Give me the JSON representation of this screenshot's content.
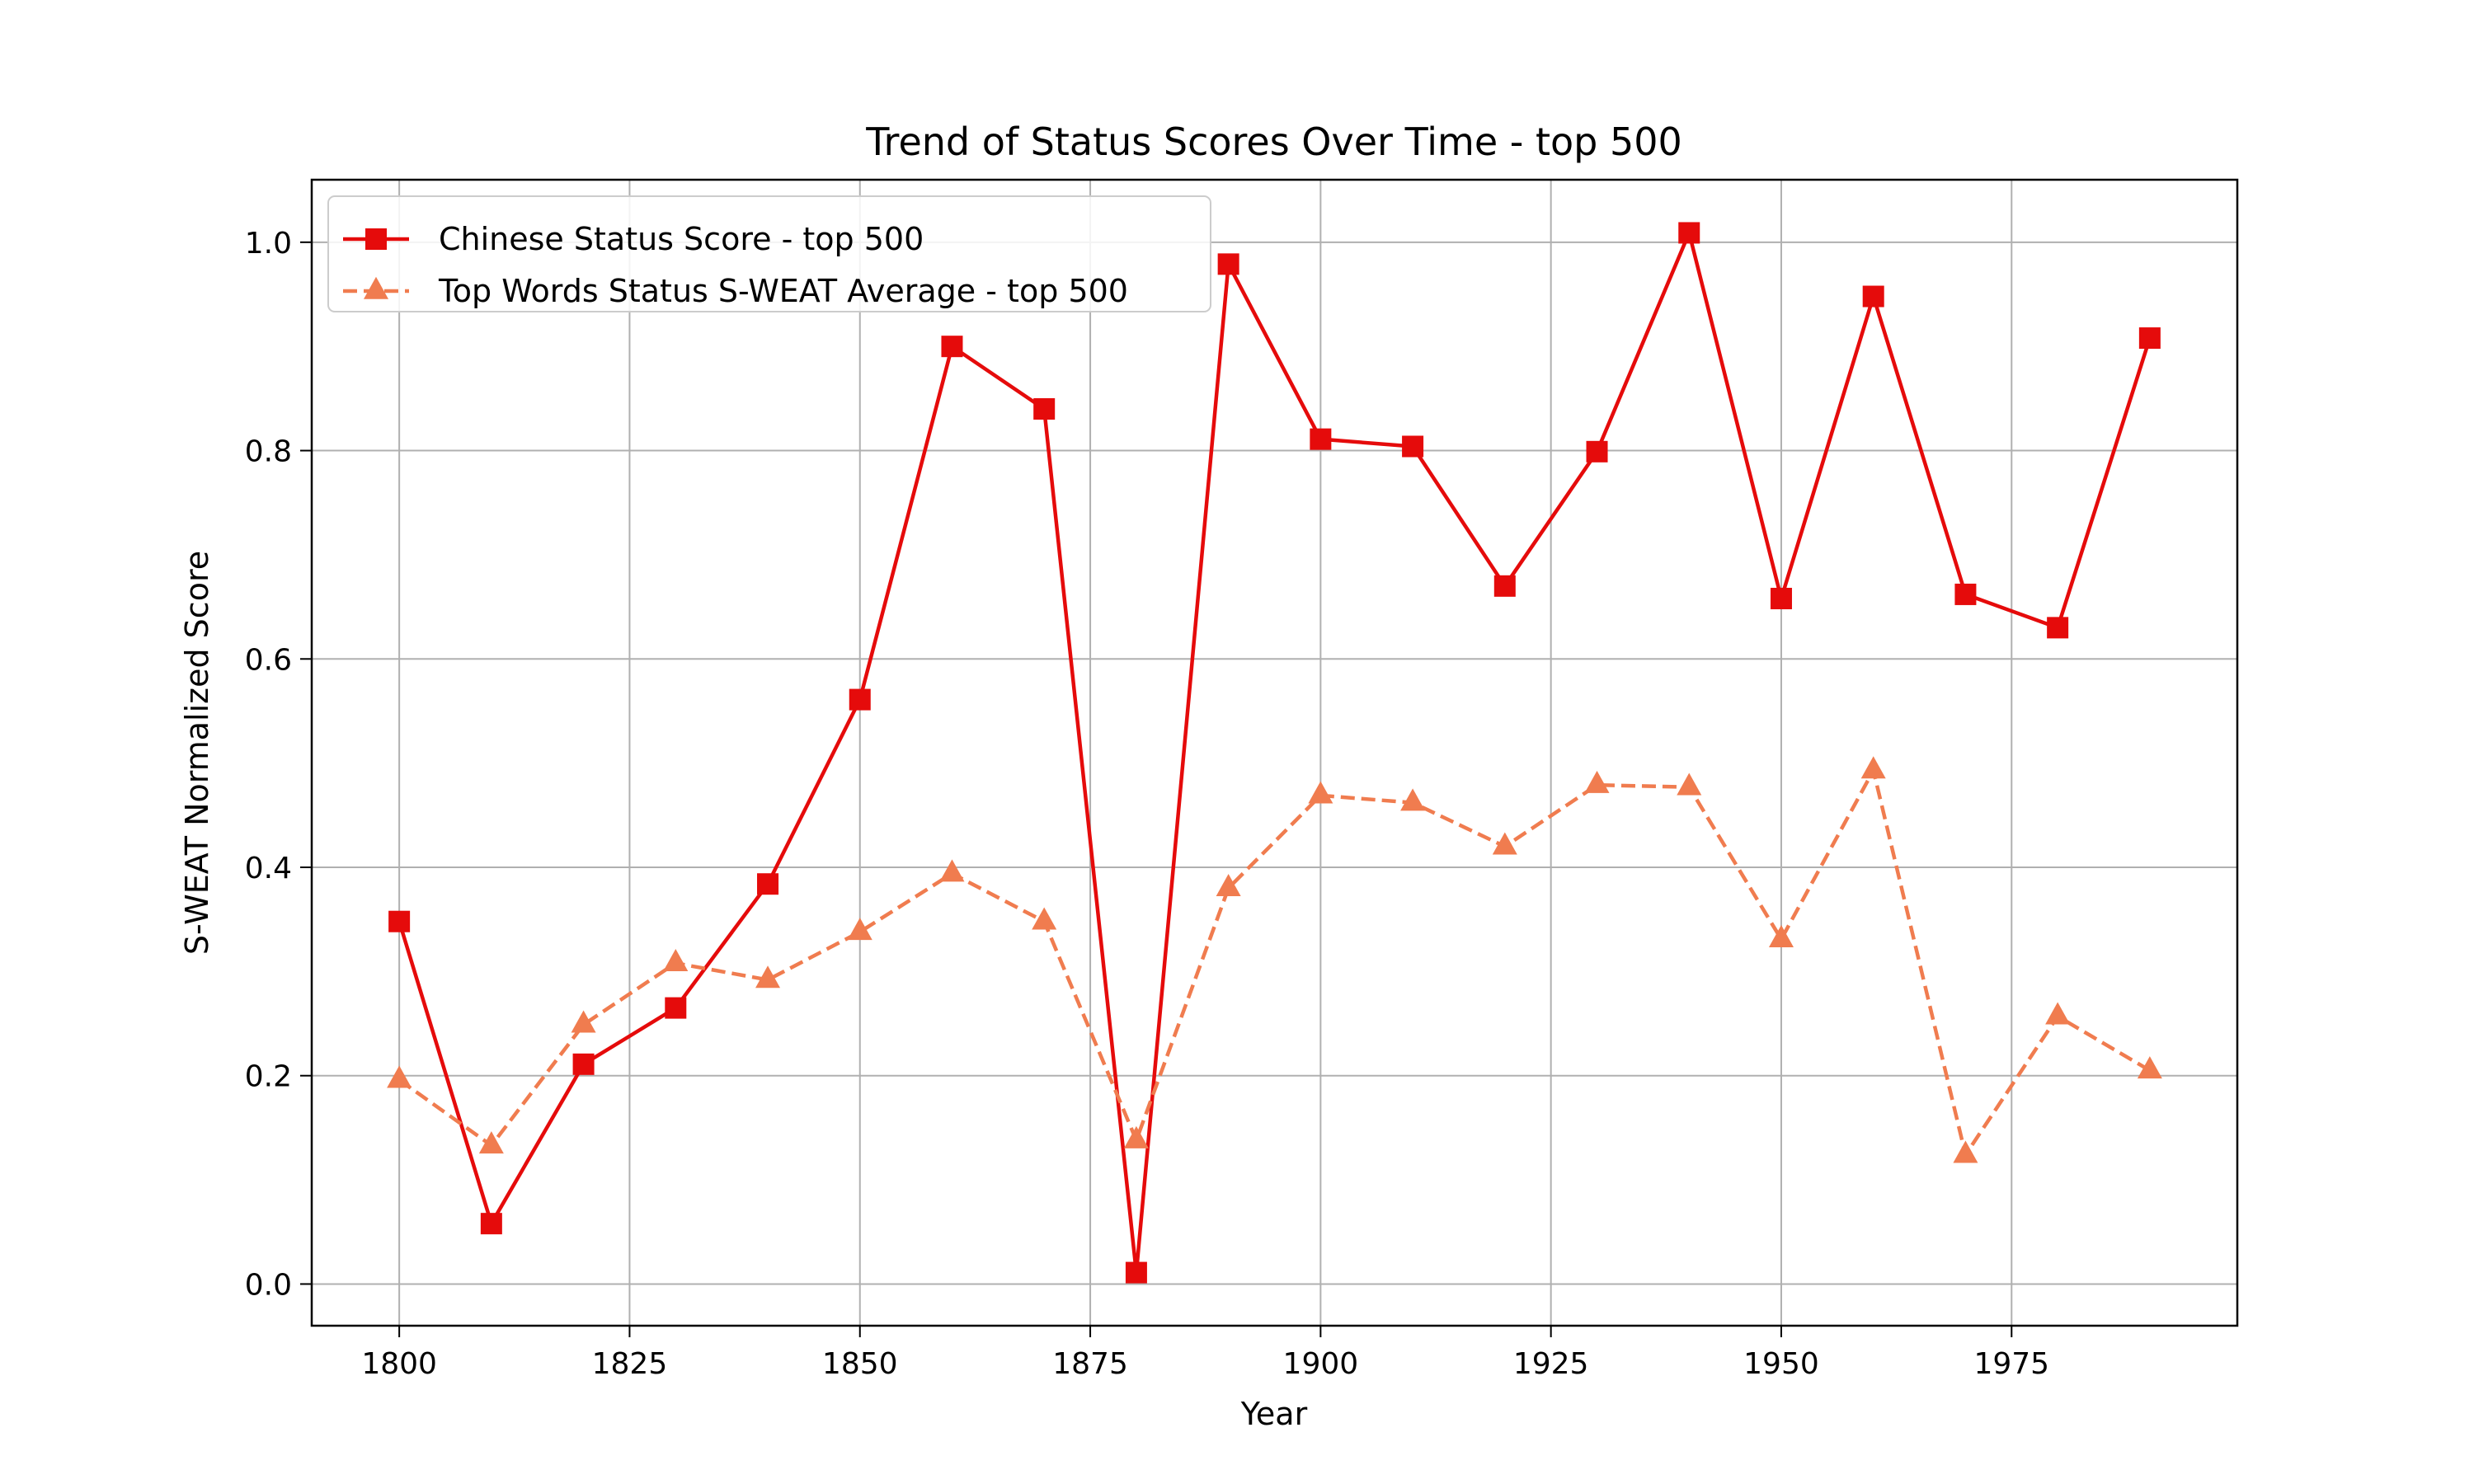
{
  "chart_data": {
    "type": "line",
    "title": "Trend of Status Scores Over Time - top 500",
    "xlabel": "Year",
    "ylabel": "S-WEAT Normalized Score",
    "xlim": [
      1790.5,
      1999.5
    ],
    "ylim": [
      -0.04,
      1.06
    ],
    "xticks": [
      1800,
      1825,
      1850,
      1875,
      1900,
      1925,
      1950,
      1975
    ],
    "yticks": [
      0.0,
      0.2,
      0.4,
      0.6,
      0.8,
      1.0
    ],
    "xtick_labels": [
      "1800",
      "1825",
      "1850",
      "1875",
      "1900",
      "1925",
      "1950",
      "1975"
    ],
    "ytick_labels": [
      "0.0",
      "0.2",
      "0.4",
      "0.6",
      "0.8",
      "1.0"
    ],
    "grid": true,
    "legend_position": "top-left",
    "x": [
      1800,
      1810,
      1820,
      1830,
      1840,
      1850,
      1860,
      1870,
      1880,
      1890,
      1900,
      1910,
      1920,
      1930,
      1940,
      1950,
      1960,
      1970,
      1980,
      1990
    ],
    "series": [
      {
        "name": "Chinese Status Score - top 500",
        "color": "#e50b0b",
        "marker": "square",
        "line_style": "solid",
        "values": [
          0.348,
          0.058,
          0.211,
          0.265,
          0.384,
          0.561,
          0.9,
          0.84,
          0.011,
          0.979,
          0.811,
          0.804,
          0.67,
          0.799,
          1.009,
          0.658,
          0.948,
          0.662,
          0.63,
          0.908
        ]
      },
      {
        "name": "Top Words Status S-WEAT Average - top 500",
        "color": "#f07c4f",
        "marker": "triangle",
        "line_style": "dashed",
        "values": [
          0.196,
          0.133,
          0.249,
          0.308,
          0.292,
          0.338,
          0.394,
          0.348,
          0.138,
          0.38,
          0.469,
          0.462,
          0.42,
          0.479,
          0.477,
          0.331,
          0.493,
          0.124,
          0.257,
          0.205
        ]
      }
    ]
  }
}
